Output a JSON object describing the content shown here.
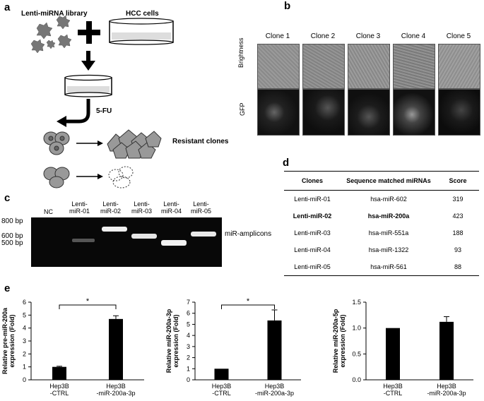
{
  "panels": {
    "a": "a",
    "b": "b",
    "c": "c",
    "d": "d",
    "e": "e"
  },
  "panel_a": {
    "library_label": "Lenti-miRNA library",
    "cells_label": "HCC cells",
    "drug_label": "5-FU",
    "resistant_label": "Resistant clones"
  },
  "panel_b": {
    "clones": [
      "Clone 1",
      "Clone 2",
      "Clone 3",
      "Clone 4",
      "Clone 5"
    ],
    "row_labels": [
      "Brightness",
      "GFP"
    ]
  },
  "panel_c": {
    "lanes": [
      "NC",
      "Lenti-\nmiR-01",
      "Lenti-\nmiR-02",
      "Lenti-\nmiR-03",
      "Lenti-\nmiR-04",
      "Lenti-\nmiR-05"
    ],
    "ladder": [
      "800 bp",
      "600 bp",
      "500 bp"
    ],
    "band_label": "miR-amplicons"
  },
  "panel_d": {
    "headers": [
      "Clones",
      "Sequence matched miRNAs",
      "Score"
    ],
    "rows": [
      {
        "clone": "Lenti-miR-01",
        "mirna": "hsa-miR-602",
        "score": "319"
      },
      {
        "clone": "Lenti-miR-02",
        "mirna": "hsa-miR-200a",
        "score": "423"
      },
      {
        "clone": "Lenti-miR-03",
        "mirna": "hsa-miR-551a",
        "score": "188"
      },
      {
        "clone": "Lenti-miR-04",
        "mirna": "hsa-miR-1322",
        "score": "93"
      },
      {
        "clone": "Lenti-miR-05",
        "mirna": "hsa-miR-561",
        "score": "88"
      }
    ]
  },
  "chart_data": [
    {
      "type": "bar",
      "categories": [
        "Hep3B\n-CTRL",
        "Hep3B\n-miR-200a-3p"
      ],
      "values": [
        1.0,
        4.7
      ],
      "errors": [
        0.05,
        0.25
      ],
      "ylabel": "Relative pre-miR-200a\nexpression (Fold)",
      "ylim": [
        0,
        6
      ],
      "yticks": [
        "0",
        "1",
        "2",
        "3",
        "4",
        "5",
        "6"
      ],
      "significance": "*"
    },
    {
      "type": "bar",
      "categories": [
        "Hep3B\n-CTRL",
        "Hep3B\n-miR-200a-3p"
      ],
      "values": [
        1.0,
        5.35
      ],
      "errors": [
        0.0,
        0.95
      ],
      "ylabel": "Relative miR-200a-3p\nexpression (Fold)",
      "ylim": [
        0,
        7
      ],
      "yticks": [
        "0",
        "1",
        "2",
        "3",
        "4",
        "5",
        "6",
        "7"
      ],
      "significance": "*"
    },
    {
      "type": "bar",
      "categories": [
        "Hep3B\n-CTRL",
        "Hep3B\n-miR-200a-3p"
      ],
      "values": [
        1.0,
        1.12
      ],
      "errors": [
        0.0,
        0.1
      ],
      "ylabel": "Relative miR-200a-5p\nexpression (Fold)",
      "ylim": [
        0,
        1.5
      ],
      "yticks": [
        "0.0",
        "0.5",
        "1.0",
        "1.5"
      ],
      "significance": ""
    }
  ]
}
